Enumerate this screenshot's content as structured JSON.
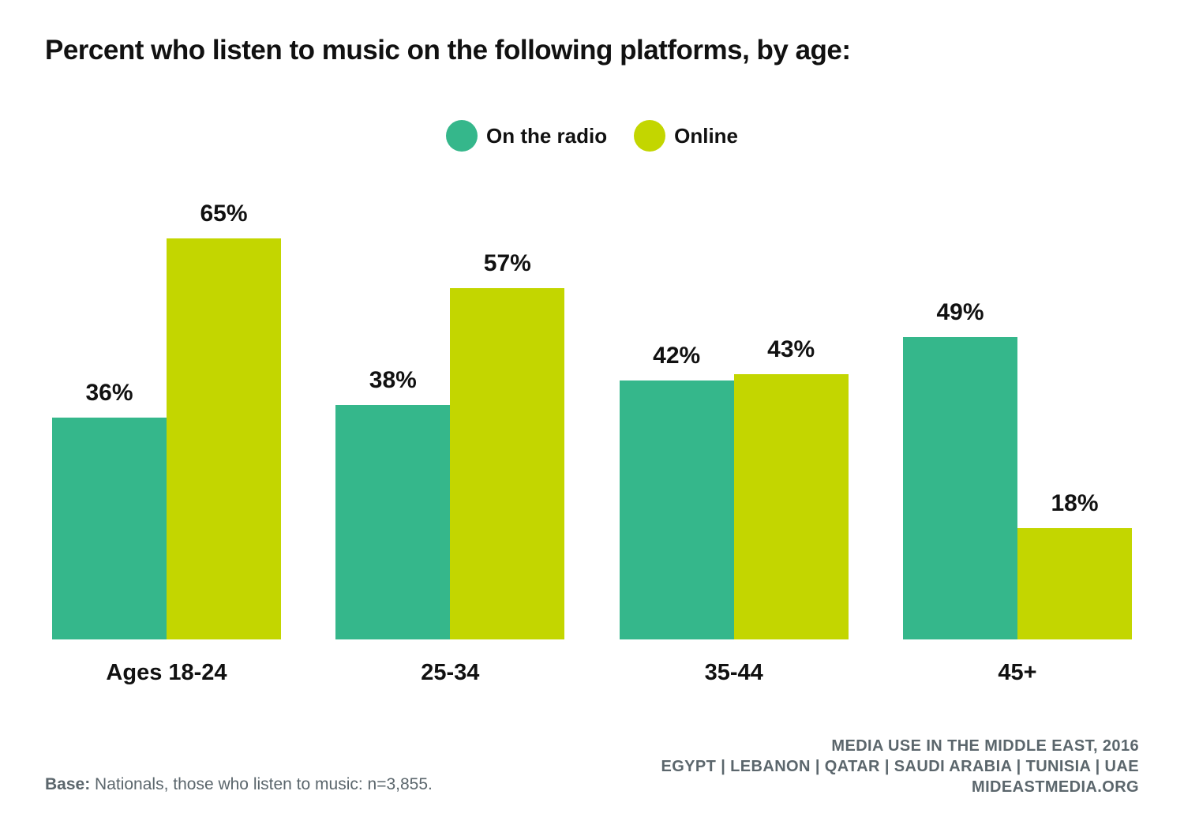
{
  "title": "Percent who listen to music on the following platforms, by age:",
  "chart_data": {
    "type": "bar",
    "title": "Percent who listen to music on the following platforms, by age:",
    "categories": [
      "Ages 18-24",
      "25-34",
      "35-44",
      "45+"
    ],
    "series": [
      {
        "name": "On the radio",
        "color": "#35b78b",
        "values": [
          36,
          38,
          42,
          49
        ]
      },
      {
        "name": "Online",
        "color": "#c3d600",
        "values": [
          65,
          57,
          43,
          18
        ]
      }
    ],
    "value_suffix": "%",
    "ylim": [
      0,
      65
    ],
    "grid": false,
    "legend_position": "top-center",
    "data_labels": true,
    "xlabel": "",
    "ylabel": ""
  },
  "footer": {
    "base_label": "Base:",
    "base_text": " Nationals, those who listen to music: n=3,855.",
    "source_lines": {
      "line1": "MEDIA USE IN THE MIDDLE EAST, 2016",
      "line2": "EGYPT | LEBANON | QATAR | SAUDI ARABIA | TUNISIA | UAE",
      "line3": "MIDEASTMEDIA.ORG"
    },
    "text_color": "#5b666c"
  }
}
